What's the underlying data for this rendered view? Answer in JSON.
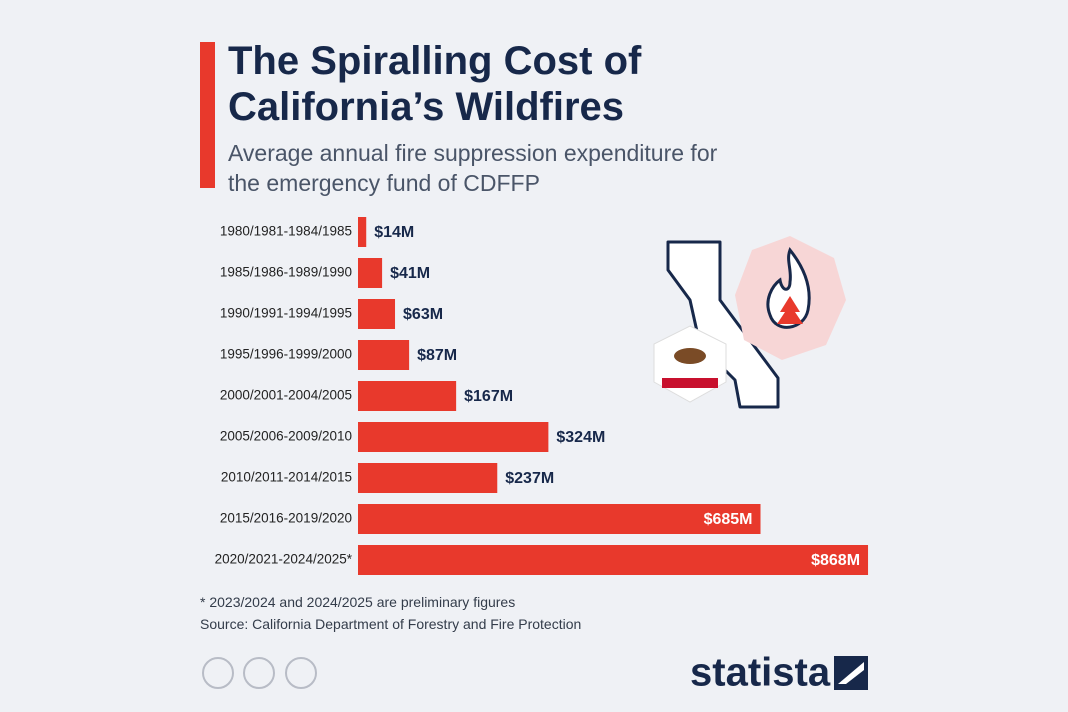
{
  "chart_data": {
    "type": "bar",
    "orientation": "horizontal",
    "title": "The Spiralling Cost of California’s Wildfires",
    "subtitle": "Average annual fire suppression expenditure for the emergency fund of CDFFP",
    "categories": [
      "1980/1981-1984/1985",
      "1985/1986-1989/1990",
      "1990/1991-1994/1995",
      "1995/1996-1999/2000",
      "2000/2001-2004/2005",
      "2005/2006-2009/2010",
      "2010/2011-2014/2015",
      "2015/2016-2019/2020",
      "2020/2021-2024/2025*"
    ],
    "values": [
      14,
      41,
      63,
      87,
      167,
      324,
      237,
      685,
      868
    ],
    "value_labels": [
      "$14M",
      "$41M",
      "$63M",
      "$87M",
      "$167M",
      "$324M",
      "$237M",
      "$685M",
      "$868M"
    ],
    "color": "#e8392c",
    "note": "* 2023/2024 and 2024/2025 are preliminary figures",
    "source": "Source: California Department of Forestry and Fire Protection",
    "brand": "statista"
  }
}
